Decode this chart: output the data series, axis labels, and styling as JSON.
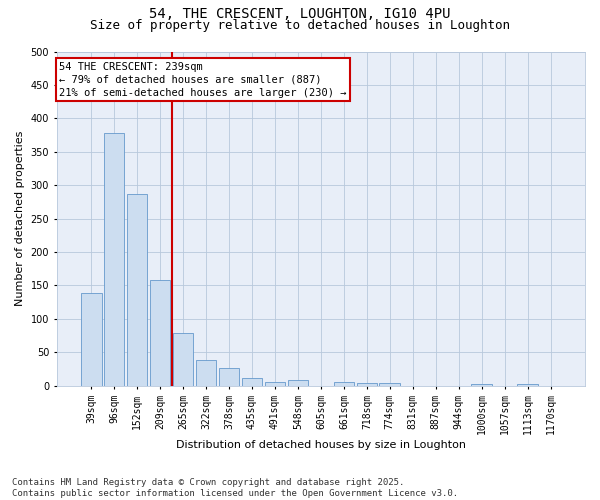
{
  "title_line1": "54, THE CRESCENT, LOUGHTON, IG10 4PU",
  "title_line2": "Size of property relative to detached houses in Loughton",
  "xlabel": "Distribution of detached houses by size in Loughton",
  "ylabel": "Number of detached properties",
  "bar_labels": [
    "39sqm",
    "96sqm",
    "152sqm",
    "209sqm",
    "265sqm",
    "322sqm",
    "378sqm",
    "435sqm",
    "491sqm",
    "548sqm",
    "605sqm",
    "661sqm",
    "718sqm",
    "774sqm",
    "831sqm",
    "887sqm",
    "944sqm",
    "1000sqm",
    "1057sqm",
    "1113sqm",
    "1170sqm"
  ],
  "bar_values": [
    138,
    378,
    287,
    158,
    79,
    39,
    26,
    11,
    6,
    8,
    0,
    5,
    4,
    4,
    0,
    0,
    0,
    3,
    0,
    3,
    0
  ],
  "bar_color": "#ccddf0",
  "bar_edgecolor": "#6699cc",
  "vline_x_index": 3,
  "vline_color": "#cc0000",
  "annotation_text": "54 THE CRESCENT: 239sqm\n← 79% of detached houses are smaller (887)\n21% of semi-detached houses are larger (230) →",
  "annotation_box_color": "#cc0000",
  "ylim": [
    0,
    500
  ],
  "yticks": [
    0,
    50,
    100,
    150,
    200,
    250,
    300,
    350,
    400,
    450,
    500
  ],
  "grid_color": "#b8c8dc",
  "background_color": "#e8eef8",
  "footer_text": "Contains HM Land Registry data © Crown copyright and database right 2025.\nContains public sector information licensed under the Open Government Licence v3.0.",
  "title_fontsize": 10,
  "subtitle_fontsize": 9,
  "axis_label_fontsize": 8,
  "tick_fontsize": 7,
  "annotation_fontsize": 7.5,
  "footer_fontsize": 6.5
}
